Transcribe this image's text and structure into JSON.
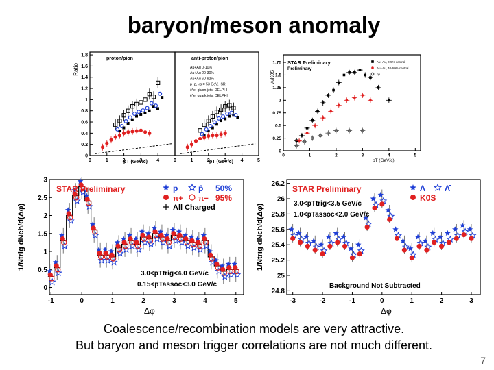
{
  "slide": {
    "title": "baryon/meson anomaly",
    "caption_line1": "Coalescence/recombination models are very attractive.",
    "caption_line2": "But baryon and meson trigger correlations are not much different.",
    "page_number": "7"
  },
  "colors": {
    "red": "#e02020",
    "blue": "#1f3fd6",
    "black": "#000000",
    "title_red": "#e02020"
  },
  "chart_data": [
    {
      "id": "proton-pion-ratio",
      "type": "scatter",
      "panels": [
        {
          "label": "proton/pion",
          "series": [
            {
              "name": "0-10% black",
              "x": [
                1.5,
                1.75,
                2.0,
                2.25,
                2.5,
                2.75,
                3.0,
                3.25,
                3.5,
                3.75,
                4.0
              ],
              "y": [
                0.55,
                0.62,
                0.72,
                0.8,
                0.88,
                0.92,
                0.95,
                1.0,
                1.1,
                1.05,
                1.3
              ]
            },
            {
              "name": "peripheral red",
              "x": [
                0.75,
                1.0,
                1.25,
                1.5,
                1.75,
                2.0,
                2.25,
                2.5,
                2.75,
                3.0,
                3.25,
                3.5
              ],
              "y": [
                0.15,
                0.22,
                0.28,
                0.33,
                0.36,
                0.4,
                0.42,
                0.43,
                0.44,
                0.45,
                0.42,
                0.4
              ]
            }
          ]
        },
        {
          "label": "anti-proton/pion",
          "series": [
            {
              "name": "0-10% black",
              "x": [
                1.5,
                1.75,
                2.0,
                2.25,
                2.5,
                2.75,
                3.0,
                3.25,
                3.5
              ],
              "y": [
                0.45,
                0.55,
                0.62,
                0.7,
                0.78,
                0.82,
                0.88,
                0.9,
                0.85
              ]
            },
            {
              "name": "peripheral red",
              "x": [
                0.75,
                1.0,
                1.25,
                1.5,
                1.75,
                2.0,
                2.25,
                2.5,
                2.75,
                3.0
              ],
              "y": [
                0.15,
                0.2,
                0.26,
                0.3,
                0.32,
                0.35,
                0.36,
                0.36,
                0.38,
                0.4
              ]
            }
          ]
        }
      ],
      "legend": [
        "Au+Au 0-10%",
        "Au+Au 20-30%",
        "Au+Au 60-92%",
        "p+p, √s = 53 GeV, ISR",
        "ē*e: gluon jets, DELPHI",
        "ē*e: quark jets, DELPHI"
      ],
      "ylabel": "Ratio",
      "xlabel": "pT (GeV/c)",
      "y_ticks": [
        "0",
        "0.2",
        "0.4",
        "0.6",
        "0.8",
        "1",
        "1.2",
        "1.4",
        "1.6",
        "1.8"
      ],
      "x_ticks": [
        "0",
        "1",
        "2",
        "3",
        "4",
        "5"
      ],
      "ylim": [
        0,
        1.85
      ],
      "xlim": [
        0,
        5
      ]
    },
    {
      "id": "lambda-k0s-ratio",
      "type": "scatter",
      "title": "STAR Preliminary",
      "ylabel": "Λ/K0S",
      "xlabel": "pT (GeV/c)",
      "series": [
        {
          "name": "Au+Au, 0-5% central",
          "x": [
            0.5,
            0.7,
            0.9,
            1.1,
            1.3,
            1.5,
            1.7,
            1.9,
            2.1,
            2.3,
            2.5,
            2.7,
            2.9,
            3.1,
            3.3,
            3.6,
            4.0
          ],
          "y": [
            0.2,
            0.3,
            0.45,
            0.6,
            0.78,
            0.95,
            1.1,
            1.2,
            1.35,
            1.5,
            1.55,
            1.55,
            1.6,
            1.5,
            1.45,
            1.25,
            1.0
          ]
        },
        {
          "name": "Au+Au, 40-60% central",
          "x": [
            0.6,
            0.9,
            1.2,
            1.5,
            1.8,
            2.1,
            2.4,
            2.7,
            3.0,
            3.3
          ],
          "y": [
            0.2,
            0.35,
            0.5,
            0.65,
            0.78,
            0.9,
            1.0,
            1.05,
            1.1,
            1.0
          ]
        },
        {
          "name": "pp",
          "x": [
            0.5,
            0.8,
            1.1,
            1.4,
            1.7,
            2.0,
            2.5,
            3.0
          ],
          "y": [
            0.1,
            0.18,
            0.25,
            0.3,
            0.35,
            0.4,
            0.4,
            0.4
          ]
        }
      ],
      "y_ticks": [
        "0",
        "0.25",
        "0.5",
        "0.75",
        "1",
        "1.25",
        "1.5",
        "1.75"
      ],
      "x_ticks": [
        "0",
        "1",
        "2",
        "3",
        "4",
        "5"
      ],
      "ylim": [
        0,
        1.9
      ],
      "xlim": [
        0,
        5.2
      ]
    },
    {
      "id": "p-pi-correlation",
      "type": "scatter",
      "title": "STAR Preliminary",
      "ylabel": "1/Ntrig dNch/d(Δφ)",
      "xlabel": "Δφ",
      "legend": {
        "p": "p",
        "pbar": "p̄",
        "p_pct": "50%",
        "pi_plus": "π+",
        "pi_minus": "π−",
        "pi_pct": "95%",
        "all": "All Charged"
      },
      "cut_trig": "3.0<pTtrig<4.0 GeV/c",
      "cut_assoc": "0.15<pTassoc<3.0 GeV/c",
      "x": [
        -1.0,
        -0.8,
        -0.6,
        -0.4,
        -0.2,
        0.0,
        0.2,
        0.4,
        0.6,
        0.8,
        1.0,
        1.2,
        1.4,
        1.6,
        1.8,
        2.0,
        2.2,
        2.4,
        2.6,
        2.8,
        3.0,
        3.2,
        3.4,
        3.6,
        3.8,
        4.0,
        4.2,
        4.4,
        4.6,
        4.8,
        5.0
      ],
      "y": [
        0.3,
        0.55,
        1.3,
        2.0,
        2.55,
        2.8,
        2.4,
        1.6,
        0.9,
        0.9,
        0.85,
        1.1,
        1.2,
        1.3,
        1.2,
        1.4,
        1.35,
        1.5,
        1.4,
        1.3,
        1.45,
        1.4,
        1.3,
        1.25,
        1.2,
        1.3,
        0.85,
        0.6,
        0.45,
        0.5,
        0.5
      ],
      "y_ticks": [
        "0",
        "0.5",
        "1",
        "1.5",
        "2",
        "2.5",
        "3"
      ],
      "x_ticks": [
        "-1",
        "0",
        "1",
        "2",
        "3",
        "4",
        "5"
      ],
      "ylim": [
        -0.2,
        3.0
      ],
      "xlim": [
        -1.05,
        5.25
      ]
    },
    {
      "id": "lambda-k0s-correlation",
      "type": "scatter",
      "title": "STAR Preliminary",
      "ylabel": "1/Ntrig dNch/d(Δφ)",
      "xlabel": "Δφ",
      "legend": {
        "lambda": "Λ",
        "lambda_bar": "Λ̄",
        "k0s": "K0S"
      },
      "cut_trig": "3.0<pTtrig<3.5 GeV/c",
      "cut_assoc": "1.0<pTassoc<2.0 GeV/c",
      "note": "Background Not Subtracted",
      "x": [
        -3.0,
        -2.75,
        -2.5,
        -2.25,
        -2.0,
        -1.75,
        -1.5,
        -1.25,
        -1.0,
        -0.75,
        -0.5,
        -0.25,
        0.0,
        0.25,
        0.5,
        0.75,
        1.0,
        1.25,
        1.5,
        1.75,
        2.0,
        2.25,
        2.5,
        2.75,
        3.0
      ],
      "y": [
        25.55,
        25.5,
        25.45,
        25.4,
        25.35,
        25.45,
        25.5,
        25.45,
        25.3,
        25.35,
        25.7,
        25.95,
        26.0,
        25.8,
        25.55,
        25.4,
        25.3,
        25.45,
        25.4,
        25.5,
        25.45,
        25.5,
        25.55,
        25.6,
        25.55
      ],
      "y_ticks": [
        "24.8",
        "25",
        "25.2",
        "25.4",
        "25.6",
        "25.8",
        "26",
        "26.2"
      ],
      "x_ticks": [
        "-3",
        "-2",
        "-1",
        "0",
        "1",
        "2",
        "3"
      ],
      "ylim": [
        24.75,
        26.25
      ],
      "xlim": [
        -3.2,
        3.3
      ]
    }
  ]
}
